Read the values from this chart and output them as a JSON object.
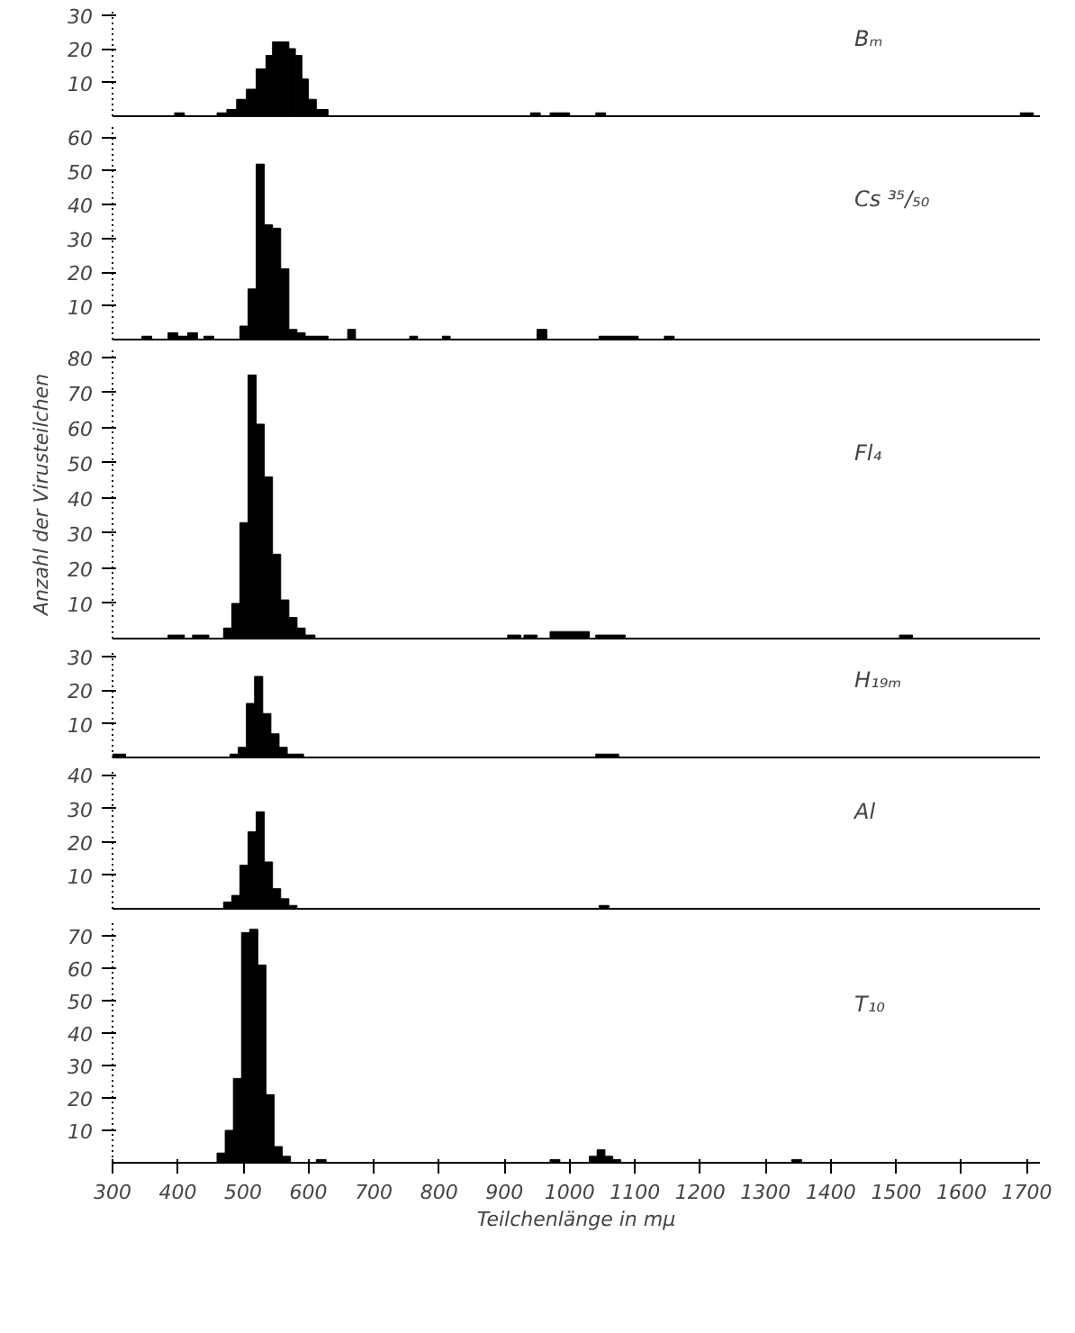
{
  "chart_data": [
    {
      "type": "histogram",
      "title": "Bₘ",
      "color": "#000000",
      "xlim": [
        300,
        1720
      ],
      "ylim": [
        0,
        32
      ],
      "yticks": [
        10,
        20,
        30
      ],
      "tick_labels": "y",
      "bins": [
        300,
        395,
        410,
        460,
        475,
        490,
        505,
        520,
        535,
        545,
        557,
        570,
        580,
        590,
        600,
        612,
        630,
        940,
        955,
        970,
        985,
        1000,
        1040,
        1055,
        1690,
        1710
      ],
      "values": [
        0,
        1,
        0,
        1,
        2,
        5,
        8,
        14,
        18,
        22,
        22,
        20,
        18,
        11,
        5,
        2,
        0,
        1,
        0,
        1,
        1,
        0,
        1,
        0,
        1
      ]
    },
    {
      "type": "histogram",
      "title": "Cs ³⁵/₅₀",
      "color": "#000000",
      "xlim": [
        300,
        1720
      ],
      "ylim": [
        0,
        63
      ],
      "yticks": [
        10,
        20,
        30,
        40,
        50,
        60
      ],
      "tick_labels": "y",
      "bins": [
        300,
        345,
        360,
        385,
        400,
        415,
        430,
        440,
        455,
        495,
        507.5,
        520,
        532.5,
        545,
        557.5,
        570,
        582.5,
        595,
        607.5,
        630,
        660,
        672,
        755,
        767,
        805,
        817,
        950,
        965,
        1045,
        1060,
        1075,
        1090,
        1105,
        1145,
        1160,
        1700
      ],
      "values": [
        0,
        1,
        0,
        2,
        1,
        2,
        0,
        1,
        0,
        4,
        15,
        52,
        34,
        33,
        21,
        3,
        2,
        1,
        1,
        0,
        3,
        0,
        1,
        0,
        1,
        0,
        3,
        0,
        1,
        1,
        1,
        1,
        0,
        1,
        0
      ]
    },
    {
      "type": "histogram",
      "title": "Fl₄",
      "ylabel": "Anzahl der Virusteilchen",
      "color": "#000000",
      "xlim": [
        300,
        1720
      ],
      "ylim": [
        0,
        82
      ],
      "yticks": [
        10,
        20,
        30,
        40,
        50,
        60,
        70,
        80
      ],
      "tick_labels": "y",
      "bins": [
        300,
        385,
        397.5,
        410,
        422.5,
        435,
        447.5,
        470,
        482.5,
        495,
        507.5,
        520,
        532.5,
        545,
        557.5,
        570,
        582.5,
        595,
        610,
        905,
        925,
        930,
        950,
        970,
        1030,
        1040,
        1085,
        1505,
        1525,
        1700
      ],
      "values": [
        0,
        1,
        1,
        0,
        1,
        1,
        0,
        3,
        10,
        33,
        75,
        61,
        46,
        24,
        11,
        6,
        3,
        1,
        0,
        1,
        0,
        1,
        0,
        2,
        0,
        1,
        0,
        1,
        0
      ]
    },
    {
      "type": "histogram",
      "title": "H₁₉ₘ",
      "color": "#000000",
      "xlim": [
        300,
        1720
      ],
      "ylim": [
        0,
        32
      ],
      "yticks": [
        10,
        20,
        30
      ],
      "tick_labels": "y",
      "bins": [
        300,
        320,
        480,
        492.5,
        505,
        517.5,
        530,
        542.5,
        555,
        567.5,
        592.5,
        1040,
        1075,
        1700
      ],
      "values": [
        1,
        0,
        1,
        3,
        16,
        24,
        13,
        7,
        3,
        1,
        0,
        1,
        0
      ]
    },
    {
      "type": "histogram",
      "title": "Al",
      "color": "#000000",
      "xlim": [
        300,
        1720
      ],
      "ylim": [
        0,
        42
      ],
      "yticks": [
        10,
        20,
        30,
        40
      ],
      "tick_labels": "y",
      "bins": [
        300,
        470,
        482.5,
        495,
        507.5,
        520,
        532.5,
        545,
        557.5,
        570,
        582.5,
        1045,
        1060,
        1700
      ],
      "values": [
        0,
        2,
        4,
        13,
        23,
        29,
        14,
        6,
        3,
        1,
        0,
        1,
        0
      ]
    },
    {
      "type": "histogram",
      "title": "T₁₀",
      "xlabel": "Teilchenlänge in mμ",
      "color": "#000000",
      "xlim": [
        300,
        1720
      ],
      "ylim": [
        0,
        75
      ],
      "xticks": [
        300,
        400,
        500,
        600,
        700,
        800,
        900,
        1000,
        1100,
        1200,
        1300,
        1400,
        1500,
        1600,
        1700
      ],
      "yticks": [
        10,
        20,
        30,
        40,
        50,
        60,
        70
      ],
      "bins": [
        300,
        460,
        472.5,
        485,
        497.5,
        510,
        522.5,
        535,
        547.5,
        560,
        572.5,
        612,
        627,
        970,
        985,
        1030,
        1042,
        1054,
        1066,
        1078,
        1340,
        1355,
        1700
      ],
      "values": [
        0,
        3,
        10,
        26,
        71,
        72,
        61,
        21,
        5,
        2,
        0,
        1,
        0,
        1,
        0,
        2,
        4,
        2,
        1,
        0,
        1,
        0
      ]
    }
  ]
}
